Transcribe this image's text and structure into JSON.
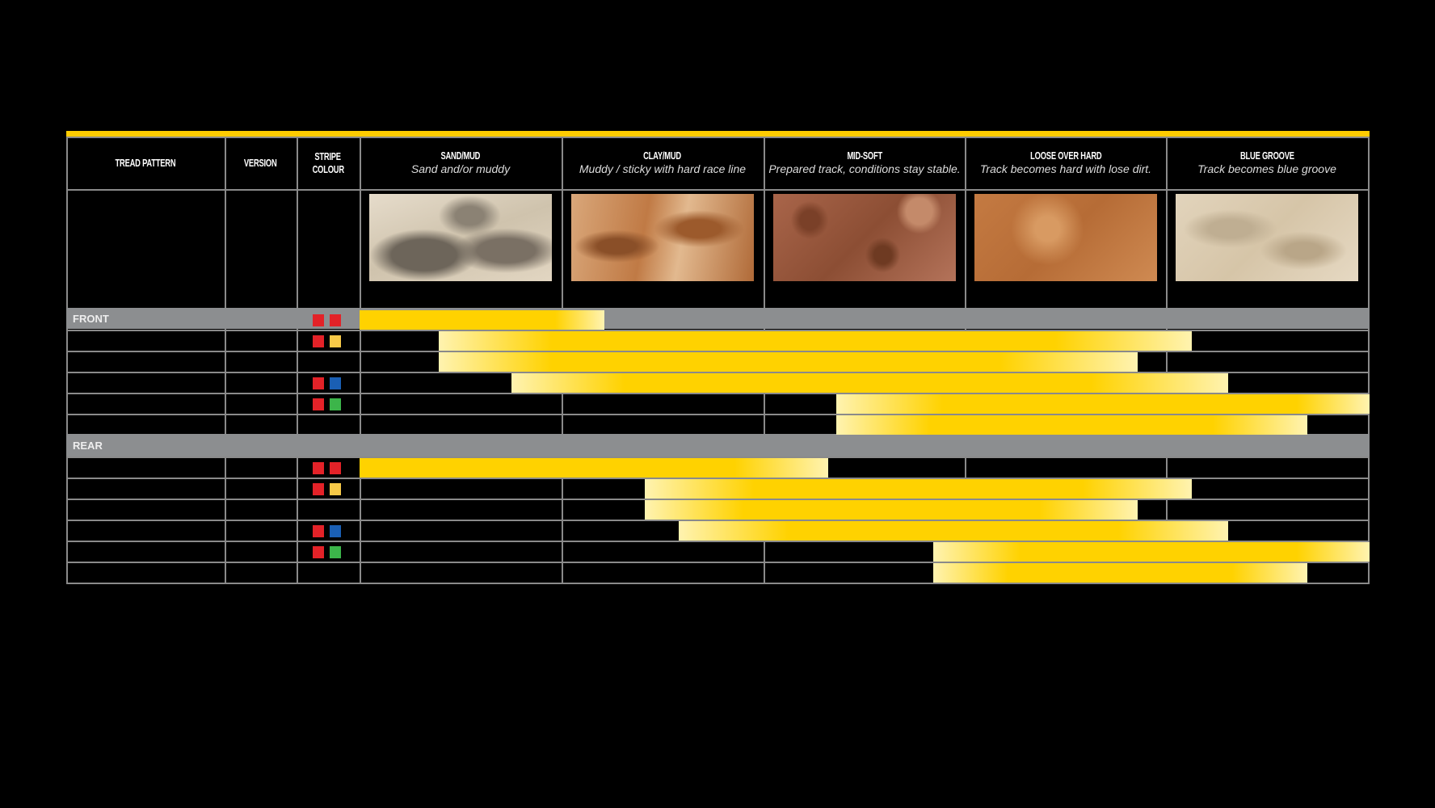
{
  "header": {
    "tread_pattern": "TREAD PATTERN",
    "version": "VERSION",
    "stripe_colour": [
      "STRIPE",
      "COLOUR"
    ],
    "terrains": [
      {
        "title": "SAND/MUD",
        "subtitle": "Sand and/or muddy"
      },
      {
        "title": "CLAY/MUD",
        "subtitle": "Muddy / sticky with hard race line"
      },
      {
        "title": "MID-SOFT",
        "subtitle": "Prepared track, conditions stay stable."
      },
      {
        "title": "LOOSE OVER HARD",
        "subtitle": "Track becomes hard with lose dirt."
      },
      {
        "title": "BLUE GROOVE",
        "subtitle": "Track becomes blue groove"
      }
    ]
  },
  "colors": {
    "accent": "#ffcc00",
    "bar": "#ffd200",
    "bar_fade": "#fff3b0",
    "band": "#8c8e90",
    "red": "#e32228",
    "yellow": "#f7c948",
    "blue": "#1a5fb4",
    "green": "#3cb54a"
  },
  "chart_data": {
    "type": "bar",
    "orientation": "horizontal-range",
    "categories": [
      "SAND/MUD",
      "CLAY/MUD",
      "MID-SOFT",
      "LOOSE OVER HARD",
      "BLUE GROOVE"
    ],
    "xlim": [
      0,
      5
    ],
    "groups": [
      {
        "name": "FRONT",
        "rows": [
          {
            "stripe": [
              "red",
              "red"
            ],
            "start": 0,
            "end": 1.21
          },
          {
            "stripe": [
              "red",
              "yellow"
            ],
            "start": 0.39,
            "end": 4.12
          },
          {
            "stripe": [],
            "start": 0.39,
            "end": 3.85
          },
          {
            "stripe": [
              "red",
              "blue"
            ],
            "start": 0.75,
            "end": 4.3
          },
          {
            "stripe": [
              "red",
              "green"
            ],
            "start": 2.36,
            "end": 5.0
          },
          {
            "stripe": [],
            "start": 2.36,
            "end": 4.69
          }
        ]
      },
      {
        "name": "REAR",
        "rows": [
          {
            "stripe": [
              "red",
              "red"
            ],
            "start": 0,
            "end": 2.32
          },
          {
            "stripe": [
              "red",
              "yellow"
            ],
            "start": 1.41,
            "end": 4.12
          },
          {
            "stripe": [],
            "start": 1.41,
            "end": 3.85
          },
          {
            "stripe": [
              "red",
              "blue"
            ],
            "start": 1.58,
            "end": 4.3
          },
          {
            "stripe": [
              "red",
              "green"
            ],
            "start": 2.84,
            "end": 5.0
          },
          {
            "stripe": [],
            "start": 2.84,
            "end": 4.69
          }
        ]
      }
    ]
  }
}
